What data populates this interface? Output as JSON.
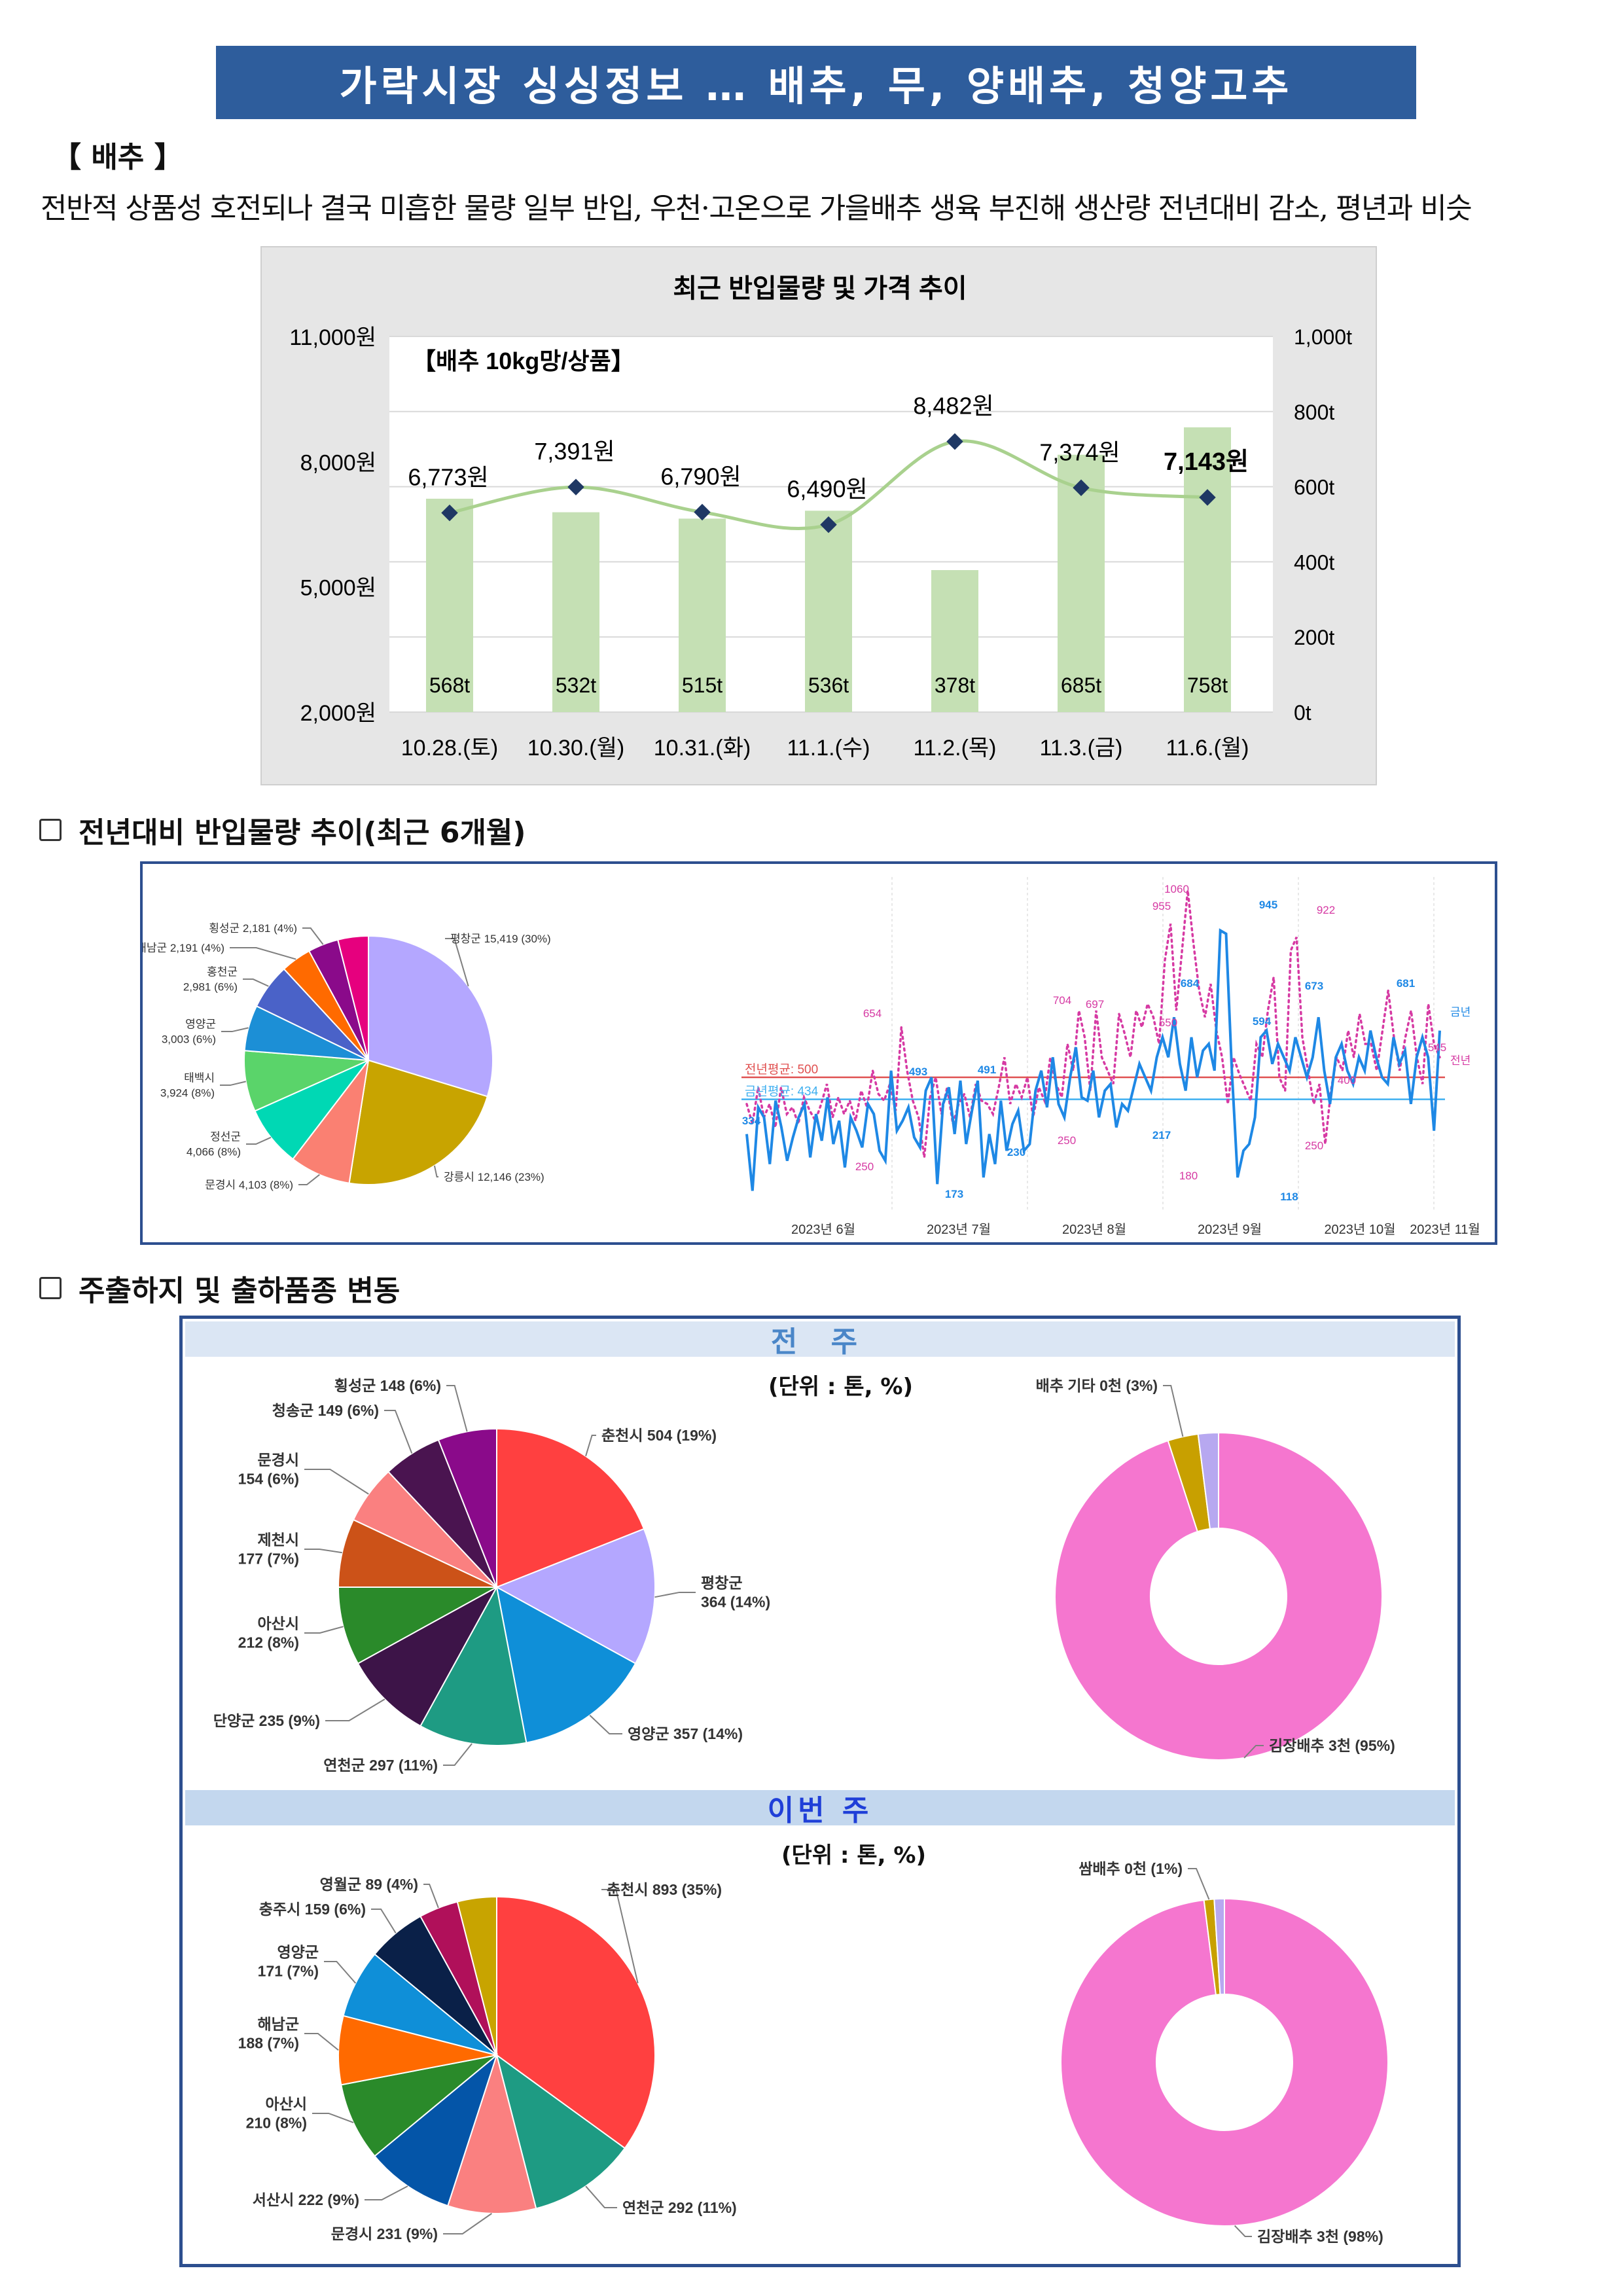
{
  "title": "가락시장 싱싱정보 … 배추, 무, 양배추, 청양고추",
  "section_label": "【 배추 】",
  "summary": "전반적 상품성 호전되나 결국 미흡한 물량 일부 반입, 우천·고온으로 가을배추 생육 부진해 생산량 전년대비 감소, 평년과 비슷",
  "subsection1": "전년대비 반입물량 추이(최근 6개월)",
  "subsection2": "주출하지 및 출하품종 변동",
  "prev_week_label": "전 주",
  "this_week_label": "이번 주",
  "unit_label": "(단위 : 톤, %)",
  "colors": {
    "bar": "#c5e0b4",
    "line": "#a9d18e",
    "marker": "#1f3864",
    "banner": "#2e5d9c",
    "current_year": "#1e88e5",
    "previous_year": "#d63aa3"
  },
  "chart_data": [
    {
      "type": "bar",
      "title": "최근 반입물량 및 가격 추이",
      "annotation": "【배추 10kg망/상품】",
      "categories": [
        "10.28.(토)",
        "10.30.(월)",
        "10.31.(화)",
        "11.1.(수)",
        "11.2.(목)",
        "11.3.(금)",
        "11.6.(월)"
      ],
      "series": [
        {
          "type": "bar",
          "axis": "right",
          "values": [
            568,
            532,
            515,
            536,
            378,
            685,
            758
          ],
          "labels": [
            "568t",
            "532t",
            "515t",
            "536t",
            "378t",
            "685t",
            "758t"
          ]
        },
        {
          "type": "line",
          "axis": "left",
          "values": [
            6773,
            7391,
            6790,
            6490,
            8482,
            7374,
            7143
          ],
          "labels": [
            "6,773원",
            "7,391원",
            "6,790원",
            "6,490원",
            "8,482원",
            "7,374원",
            "7,143원"
          ]
        }
      ],
      "left_axis": {
        "ylim": [
          2000,
          11000
        ],
        "ticks": [
          "11,000원",
          "8,000원",
          "5,000원",
          "2,000원"
        ]
      },
      "right_axis": {
        "ylim": [
          0,
          1000
        ],
        "ticks": [
          "1,000t",
          "800t",
          "600t",
          "400t",
          "200t",
          "0t"
        ]
      },
      "grid": true,
      "highlight_last": true
    },
    {
      "type": "pie",
      "slices": [
        {
          "label": "평창군 15,419 (30%)",
          "value": 15419,
          "percent": 30,
          "color": "#b4a7ff"
        },
        {
          "label": "강릉시 12,146 (23%)",
          "value": 12146,
          "percent": 23,
          "color": "#c8a400"
        },
        {
          "label": "문경시 4,103 (8%)",
          "value": 4103,
          "percent": 8,
          "color": "#fa8072"
        },
        {
          "label": "정선군\n4,066 (8%)",
          "value": 4066,
          "percent": 8,
          "color": "#00d8b4"
        },
        {
          "label": "태백시\n3,924 (8%)",
          "value": 3924,
          "percent": 8,
          "color": "#5ad46a"
        },
        {
          "label": "영양군\n3,003 (6%)",
          "value": 3003,
          "percent": 6,
          "color": "#1c8fd6"
        },
        {
          "label": "홍천군\n2,981 (6%)",
          "value": 2981,
          "percent": 6,
          "color": "#4a62c8"
        },
        {
          "label": "해남군 2,191 (4%)",
          "value": 2191,
          "percent": 4,
          "color": "#ff6a00"
        },
        {
          "label": "횡성군 2,181 (4%)",
          "value": 2181,
          "percent": 4,
          "color": "#8a0a8a"
        },
        {
          "label": "기타",
          "value": 2300,
          "percent": 4,
          "color": "#e6007e",
          "unlabeled": true
        }
      ]
    },
    {
      "type": "line",
      "x_ticks": [
        "2023년 6월",
        "2023년 7월",
        "2023년 8월",
        "2023년 9월",
        "2023년 10월",
        "2023년 11월"
      ],
      "series": [
        {
          "name": "금년",
          "color": "#1e88e5"
        },
        {
          "name": "전년",
          "color": "#d63aa3",
          "dashed": true
        }
      ],
      "reference_lines": [
        {
          "label": "전년평균: 500",
          "value": 500,
          "color": "#e05050"
        },
        {
          "label": "금년평균: 434",
          "value": 434,
          "color": "#40b0f0"
        }
      ],
      "point_labels": [
        "334",
        "654",
        "250",
        "493",
        "491",
        "173",
        "230",
        "704",
        "697",
        "250",
        "955",
        "1060",
        "550",
        "684",
        "217",
        "180",
        "945",
        "594",
        "922",
        "673",
        "118",
        "250",
        "681",
        "545",
        "400"
      ],
      "ylim": [
        100,
        1100
      ]
    },
    {
      "type": "pie",
      "panel": "전 주",
      "slices": [
        {
          "label": "춘천시 504 (19%)",
          "value": 504,
          "percent": 19,
          "color": "#ff4040"
        },
        {
          "label": "평창군\n364 (14%)",
          "value": 364,
          "percent": 14,
          "color": "#b4a7ff"
        },
        {
          "label": "영양군 357 (14%)",
          "value": 357,
          "percent": 14,
          "color": "#0f8fd8"
        },
        {
          "label": "연천군 297 (11%)",
          "value": 297,
          "percent": 11,
          "color": "#1e9b83"
        },
        {
          "label": "단양군 235 (9%)",
          "value": 235,
          "percent": 9,
          "color": "#3d1448"
        },
        {
          "label": "아산시\n212 (8%)",
          "value": 212,
          "percent": 8,
          "color": "#2a8a2a"
        },
        {
          "label": "제천시\n177 (7%)",
          "value": 177,
          "percent": 7,
          "color": "#cc5218"
        },
        {
          "label": "문경시\n154 (6%)",
          "value": 154,
          "percent": 6,
          "color": "#fa8080"
        },
        {
          "label": "청송군 149 (6%)",
          "value": 149,
          "percent": 6,
          "color": "#4a1450"
        },
        {
          "label": "횡성군 148 (6%)",
          "value": 148,
          "percent": 6,
          "color": "#8a0a8a"
        }
      ]
    },
    {
      "type": "pie",
      "panel": "전 주",
      "donut": true,
      "slices": [
        {
          "label": "김장배추 3천 (95%)",
          "percent": 95,
          "color": "#f576cf"
        },
        {
          "label": "배추 기타 0천 (3%)",
          "percent": 3,
          "color": "#c8a000"
        },
        {
          "label": "",
          "percent": 2,
          "color": "#b7a8f0",
          "unlabeled": true
        }
      ]
    },
    {
      "type": "pie",
      "panel": "이번 주",
      "slices": [
        {
          "label": "춘천시 893 (35%)",
          "value": 893,
          "percent": 35,
          "color": "#ff4040"
        },
        {
          "label": "연천군 292 (11%)",
          "value": 292,
          "percent": 11,
          "color": "#1e9b83"
        },
        {
          "label": "문경시 231 (9%)",
          "value": 231,
          "percent": 9,
          "color": "#fa8080"
        },
        {
          "label": "서산시 222 (9%)",
          "value": 222,
          "percent": 9,
          "color": "#0455a8"
        },
        {
          "label": "아산시\n210 (8%)",
          "value": 210,
          "percent": 8,
          "color": "#2a8a2a"
        },
        {
          "label": "해남군\n188 (7%)",
          "value": 188,
          "percent": 7,
          "color": "#ff6a00"
        },
        {
          "label": "영양군\n171 (7%)",
          "value": 171,
          "percent": 7,
          "color": "#0f8fd8"
        },
        {
          "label": "충주시 159 (6%)",
          "value": 159,
          "percent": 6,
          "color": "#0a2048"
        },
        {
          "label": "영월군 89 (4%)",
          "value": 89,
          "percent": 4,
          "color": "#b0105a"
        },
        {
          "label": "",
          "value": 100,
          "percent": 4,
          "color": "#c8a400",
          "unlabeled": true
        }
      ]
    },
    {
      "type": "pie",
      "panel": "이번 주",
      "donut": true,
      "slices": [
        {
          "label": "김장배추 3천 (98%)",
          "percent": 98,
          "color": "#f576cf"
        },
        {
          "label": "쌈배추 0천 (1%)",
          "percent": 1,
          "color": "#c8a000"
        },
        {
          "label": "",
          "percent": 1,
          "color": "#b7a8f0",
          "unlabeled": true
        }
      ]
    }
  ]
}
